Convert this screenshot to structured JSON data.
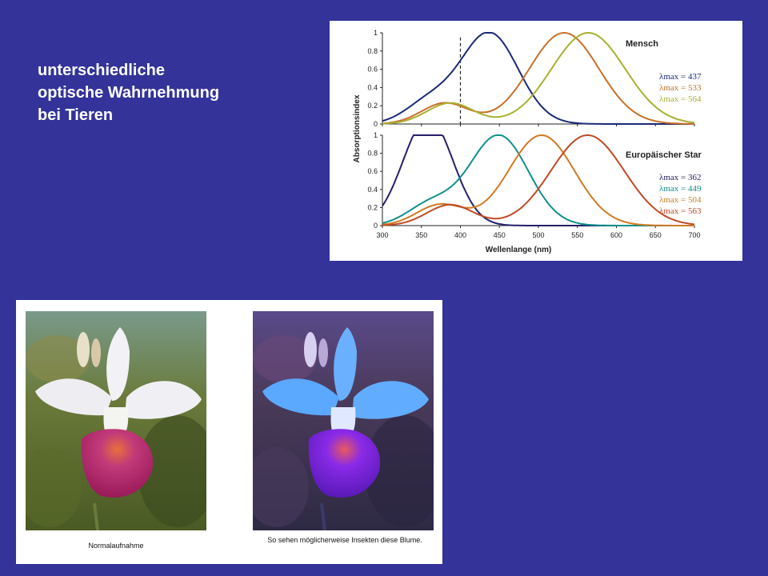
{
  "slide": {
    "title_lines": [
      "unterschiedliche",
      "optische Wahrnehmung",
      "bei Tieren"
    ]
  },
  "chart_data": {
    "type": "line",
    "xlabel": "Wellenlange (nm)",
    "ylabel": "Absorptionsindex",
    "xlim": [
      300,
      700
    ],
    "ylim": [
      0,
      1
    ],
    "x_ticks": [
      "300",
      "350",
      "400",
      "450",
      "500",
      "550",
      "600",
      "650",
      "700"
    ],
    "y_ticks": [
      "0",
      "0.2",
      "0.4",
      "0.6",
      "0.8",
      "1"
    ],
    "grid": false,
    "legend_position": "right",
    "reference_line": {
      "x": 400,
      "style": "dashed"
    },
    "panels": [
      {
        "title": "Mensch",
        "series": [
          {
            "name": "λmax = 437",
            "peak": 437,
            "color": "#1a2a78"
          },
          {
            "name": "λmax = 533",
            "peak": 533,
            "color": "#c87028"
          },
          {
            "name": "λmax = 564",
            "peak": 564,
            "color": "#a8b030"
          }
        ]
      },
      {
        "title": "Europäischer Star",
        "series": [
          {
            "name": "λmax = 362",
            "peak": 362,
            "color": "#25206a"
          },
          {
            "name": "λmax = 449",
            "peak": 449,
            "color": "#10908a"
          },
          {
            "name": "λmax = 504",
            "peak": 504,
            "color": "#d07a24"
          },
          {
            "name": "λmax = 563",
            "peak": 563,
            "color": "#c04a24"
          }
        ]
      }
    ]
  },
  "photos": {
    "normal_caption": "Normalaufnahme",
    "uv_caption": "So sehen möglicherweise Insekten diese Blume."
  }
}
